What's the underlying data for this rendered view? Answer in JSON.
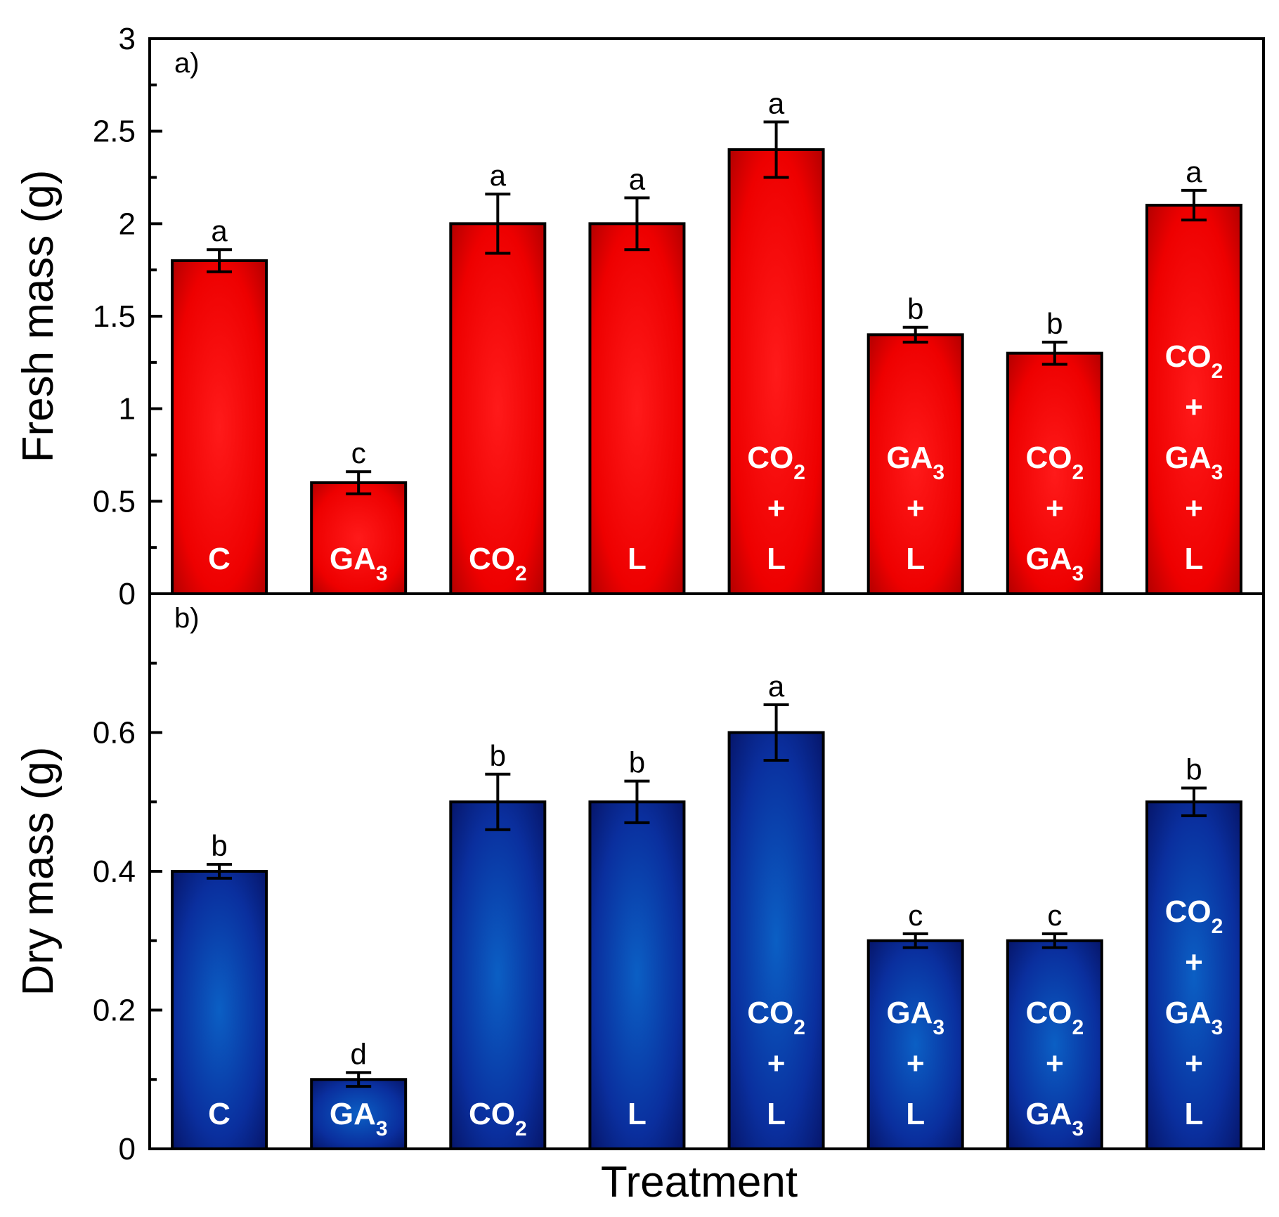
{
  "chart_data": [
    {
      "type": "bar",
      "panel_label": "a)",
      "ylabel": "Fresh mass (g)",
      "ylim": [
        0,
        3
      ],
      "yticks": [
        "0",
        "0.5",
        "1",
        "1.5",
        "2",
        "2.5",
        "3"
      ],
      "ytick_values": [
        0,
        0.5,
        1,
        1.5,
        2,
        2.5,
        3
      ],
      "color": "#ee0000",
      "categories": [
        {
          "lines": [
            {
              "text": "C",
              "sub": ""
            }
          ]
        },
        {
          "lines": [
            {
              "text": "GA",
              "sub": "3"
            }
          ]
        },
        {
          "lines": [
            {
              "text": "CO",
              "sub": "2"
            }
          ]
        },
        {
          "lines": [
            {
              "text": "L",
              "sub": ""
            }
          ]
        },
        {
          "lines": [
            {
              "text": "CO",
              "sub": "2"
            },
            {
              "text": "+",
              "sub": ""
            },
            {
              "text": "L",
              "sub": ""
            }
          ]
        },
        {
          "lines": [
            {
              "text": "GA",
              "sub": "3"
            },
            {
              "text": "+",
              "sub": ""
            },
            {
              "text": "L",
              "sub": ""
            }
          ]
        },
        {
          "lines": [
            {
              "text": "CO",
              "sub": "2"
            },
            {
              "text": "+",
              "sub": ""
            },
            {
              "text": "GA",
              "sub": "3"
            }
          ]
        },
        {
          "lines": [
            {
              "text": "CO",
              "sub": "2"
            },
            {
              "text": "+",
              "sub": ""
            },
            {
              "text": "GA",
              "sub": "3"
            },
            {
              "text": "+",
              "sub": ""
            },
            {
              "text": "L",
              "sub": ""
            }
          ]
        }
      ],
      "values": [
        1.8,
        0.6,
        2.0,
        2.0,
        2.4,
        1.4,
        1.3,
        2.1
      ],
      "errors": [
        0.06,
        0.06,
        0.16,
        0.14,
        0.15,
        0.04,
        0.06,
        0.08
      ],
      "letters": [
        "a",
        "c",
        "a",
        "a",
        "a",
        "b",
        "b",
        "a"
      ]
    },
    {
      "type": "bar",
      "panel_label": "b)",
      "ylabel": "Dry mass (g)",
      "xlabel": "Treatment",
      "ylim": [
        0,
        0.8
      ],
      "yticks": [
        "0",
        "0.2",
        "0.4",
        "0.6"
      ],
      "ytick_values": [
        0,
        0.2,
        0.4,
        0.6
      ],
      "color": "#0a2a9a",
      "categories": [
        {
          "lines": [
            {
              "text": "C",
              "sub": ""
            }
          ]
        },
        {
          "lines": [
            {
              "text": "GA",
              "sub": "3"
            }
          ]
        },
        {
          "lines": [
            {
              "text": "CO",
              "sub": "2"
            }
          ]
        },
        {
          "lines": [
            {
              "text": "L",
              "sub": ""
            }
          ]
        },
        {
          "lines": [
            {
              "text": "CO",
              "sub": "2"
            },
            {
              "text": "+",
              "sub": ""
            },
            {
              "text": "L",
              "sub": ""
            }
          ]
        },
        {
          "lines": [
            {
              "text": "GA",
              "sub": "3"
            },
            {
              "text": "+",
              "sub": ""
            },
            {
              "text": "L",
              "sub": ""
            }
          ]
        },
        {
          "lines": [
            {
              "text": "CO",
              "sub": "2"
            },
            {
              "text": "+",
              "sub": ""
            },
            {
              "text": "GA",
              "sub": "3"
            }
          ]
        },
        {
          "lines": [
            {
              "text": "CO",
              "sub": "2"
            },
            {
              "text": "+",
              "sub": ""
            },
            {
              "text": "GA",
              "sub": "3"
            },
            {
              "text": "+",
              "sub": ""
            },
            {
              "text": "L",
              "sub": ""
            }
          ]
        }
      ],
      "values": [
        0.4,
        0.1,
        0.5,
        0.5,
        0.6,
        0.3,
        0.3,
        0.5
      ],
      "errors": [
        0.01,
        0.01,
        0.04,
        0.03,
        0.04,
        0.01,
        0.01,
        0.02
      ],
      "letters": [
        "b",
        "d",
        "b",
        "b",
        "a",
        "c",
        "c",
        "b"
      ]
    }
  ]
}
